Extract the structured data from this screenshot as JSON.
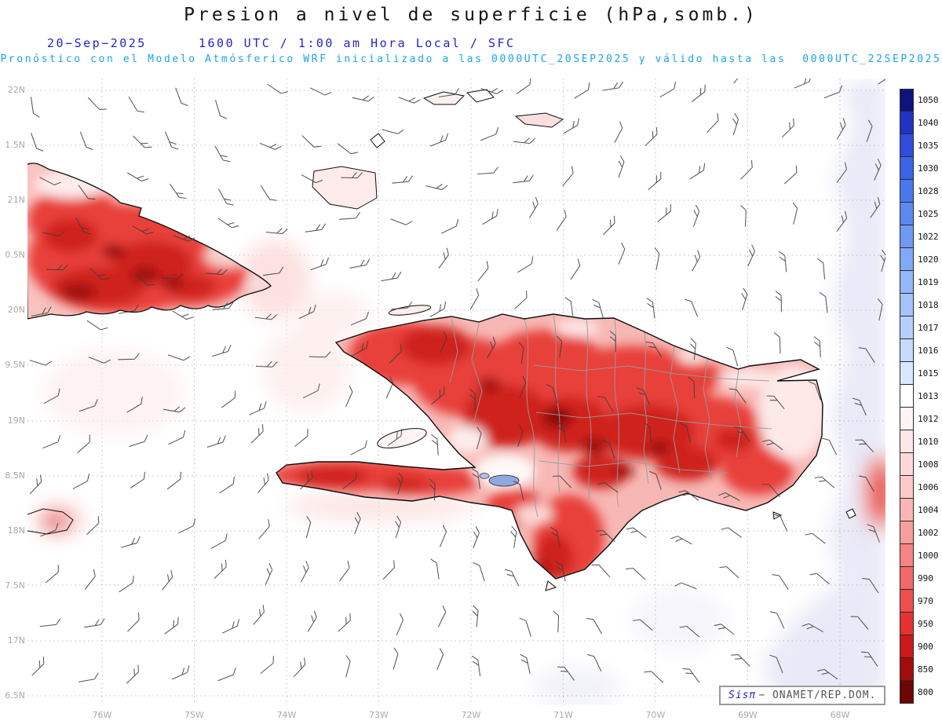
{
  "header": {
    "title": "Presion a nivel de superficie (hPa,somb.)",
    "date": "20−Sep−2025",
    "valid": "1600 UTC / 1:00 am Hora Local / SFC",
    "model_line": "Pronóstico con el Modelo Atmósferico WRF inicializado a las 0000UTC_20SEP2025 y válido hasta las  0000UTC_22SEP2025"
  },
  "axes": {
    "lat": [
      "22N",
      "1.5N",
      "21N",
      "0.5N",
      "20N",
      "9.5N",
      "19N",
      "8.5N",
      "18N",
      "7.5N",
      "17N",
      "6.5N"
    ],
    "lon": [
      "76W",
      "75W",
      "74W",
      "73W",
      "72W",
      "71W",
      "70W",
      "69W",
      "68W"
    ]
  },
  "colorbar": {
    "unit": "hPa",
    "levels": [
      {
        "value": "1050",
        "color": "#10127e"
      },
      {
        "value": "1040",
        "color": "#2233c4"
      },
      {
        "value": "1035",
        "color": "#2f4cdd"
      },
      {
        "value": "1030",
        "color": "#3b63e8"
      },
      {
        "value": "1028",
        "color": "#4b77ec"
      },
      {
        "value": "1025",
        "color": "#5c89f0"
      },
      {
        "value": "1022",
        "color": "#6f9af3"
      },
      {
        "value": "1020",
        "color": "#81a9f5"
      },
      {
        "value": "1019",
        "color": "#93b7f7"
      },
      {
        "value": "1018",
        "color": "#a5c3f9"
      },
      {
        "value": "1017",
        "color": "#b6cffa"
      },
      {
        "value": "1016",
        "color": "#c7dafb"
      },
      {
        "value": "1015",
        "color": "#d9e6fc"
      },
      {
        "value": "1013",
        "color": "#ffffff"
      },
      {
        "value": "1012",
        "color": "#fef4f4"
      },
      {
        "value": "1010",
        "color": "#fde7e7"
      },
      {
        "value": "1008",
        "color": "#fcd9d9"
      },
      {
        "value": "1006",
        "color": "#fbc9c9"
      },
      {
        "value": "1004",
        "color": "#f9b5b5"
      },
      {
        "value": "1002",
        "color": "#f79e9e"
      },
      {
        "value": "1000",
        "color": "#f58484"
      },
      {
        "value": "990",
        "color": "#f26969"
      },
      {
        "value": "970",
        "color": "#ed4e4e"
      },
      {
        "value": "950",
        "color": "#e53131"
      },
      {
        "value": "900",
        "color": "#cb1919"
      },
      {
        "value": "850",
        "color": "#a20c0c"
      },
      {
        "value": "800",
        "color": "#6e0404"
      }
    ]
  },
  "credit": {
    "system": "Sisπ",
    "org": "− ONAMET/REP.DOM."
  }
}
